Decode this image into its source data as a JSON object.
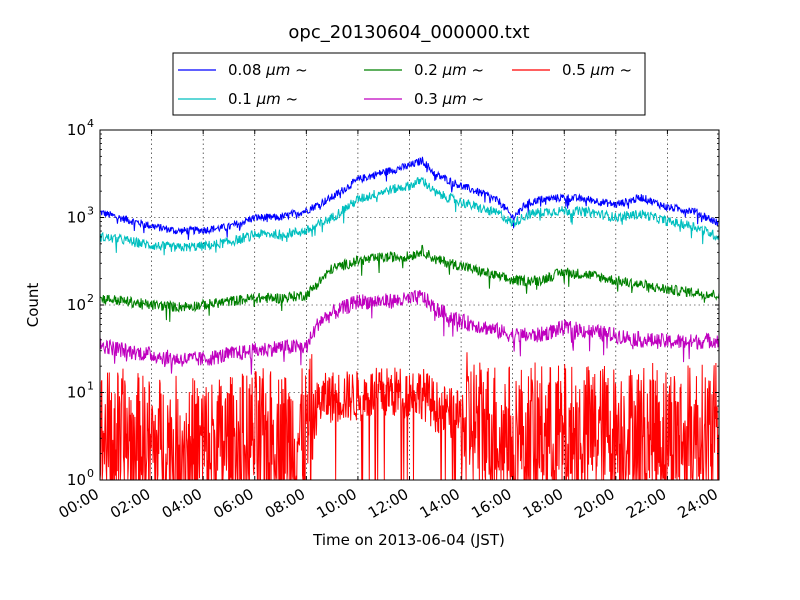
{
  "chart_data": {
    "type": "line",
    "title": "opc_20130604_000000.txt",
    "xlabel": "Time on 2013-06-04 (JST)",
    "ylabel": "Count",
    "x_tick_labels": [
      "00:00",
      "02:00",
      "04:00",
      "06:00",
      "08:00",
      "10:00",
      "12:00",
      "14:00",
      "16:00",
      "18:00",
      "20:00",
      "22:00",
      "24:00"
    ],
    "y_tick_labels": [
      {
        "base": "10",
        "exp": "0"
      },
      {
        "base": "10",
        "exp": "1"
      },
      {
        "base": "10",
        "exp": "2"
      },
      {
        "base": "10",
        "exp": "3"
      },
      {
        "base": "10",
        "exp": "4"
      }
    ],
    "xlim": [
      "2013-06-04 00:00",
      "2013-06-05 00:00"
    ],
    "ylim": [
      1,
      10000
    ],
    "yscale": "log",
    "grid": true,
    "legend_position": "top",
    "series": [
      {
        "name": "0.08 μm ~",
        "name_main": "0.08 ",
        "name_unit": "μm ~",
        "color": "#0000ff",
        "x": [
          "00:00",
          "01:00",
          "02:00",
          "03:00",
          "04:00",
          "05:00",
          "06:00",
          "07:00",
          "08:00",
          "09:00",
          "10:00",
          "11:00",
          "12:00",
          "12:30",
          "13:00",
          "14:00",
          "15:00",
          "15:30",
          "16:00",
          "16:30",
          "17:00",
          "18:00",
          "19:00",
          "20:00",
          "21:00",
          "22:00",
          "23:00",
          "24:00"
        ],
        "values": [
          1150,
          950,
          800,
          700,
          720,
          780,
          1000,
          1000,
          1200,
          1700,
          2700,
          3300,
          3900,
          4500,
          3100,
          2300,
          1800,
          1500,
          1000,
          1400,
          1600,
          1700,
          1600,
          1400,
          1700,
          1300,
          1200,
          850
        ]
      },
      {
        "name": "0.1 μm ~",
        "name_main": "0.1 ",
        "name_unit": "μm ~",
        "color": "#00bfbf",
        "x": [
          "00:00",
          "01:00",
          "02:00",
          "03:00",
          "04:00",
          "05:00",
          "06:00",
          "07:00",
          "08:00",
          "09:00",
          "10:00",
          "11:00",
          "12:00",
          "12:30",
          "13:00",
          "14:00",
          "15:00",
          "15:30",
          "16:00",
          "16:30",
          "17:00",
          "18:00",
          "19:00",
          "20:00",
          "21:00",
          "22:00",
          "23:00",
          "24:00"
        ],
        "values": [
          600,
          550,
          480,
          450,
          470,
          520,
          640,
          650,
          700,
          1000,
          1600,
          2000,
          2300,
          2700,
          1900,
          1500,
          1200,
          1100,
          850,
          1050,
          1150,
          1200,
          1150,
          1000,
          1100,
          900,
          800,
          600
        ]
      },
      {
        "name": "0.2 μm ~",
        "name_main": "0.2 ",
        "name_unit": "μm ~",
        "color": "#008000",
        "x": [
          "00:00",
          "01:00",
          "02:00",
          "03:00",
          "04:00",
          "05:00",
          "06:00",
          "07:00",
          "08:00",
          "09:00",
          "10:00",
          "11:00",
          "12:00",
          "12:30",
          "13:00",
          "14:00",
          "15:00",
          "16:00",
          "17:00",
          "18:00",
          "19:00",
          "20:00",
          "21:00",
          "22:00",
          "23:00",
          "24:00"
        ],
        "values": [
          120,
          110,
          100,
          95,
          100,
          110,
          120,
          120,
          130,
          260,
          320,
          350,
          360,
          420,
          330,
          280,
          230,
          190,
          190,
          240,
          220,
          190,
          170,
          150,
          140,
          130
        ]
      },
      {
        "name": "0.3 μm ~",
        "name_main": "0.3 ",
        "name_unit": "μm ~",
        "color": "#bf00bf",
        "x": [
          "00:00",
          "01:00",
          "02:00",
          "03:00",
          "04:00",
          "05:00",
          "06:00",
          "07:00",
          "08:00",
          "08:30",
          "09:00",
          "10:00",
          "11:00",
          "12:00",
          "12:30",
          "13:00",
          "14:00",
          "15:00",
          "16:00",
          "17:00",
          "18:00",
          "19:00",
          "20:00",
          "21:00",
          "22:00",
          "23:00",
          "24:00"
        ],
        "values": [
          35,
          30,
          27,
          24,
          24,
          27,
          30,
          33,
          33,
          65,
          80,
          110,
          110,
          115,
          125,
          90,
          65,
          55,
          45,
          45,
          55,
          50,
          45,
          40,
          38,
          38,
          40
        ]
      },
      {
        "name": "0.5 μm ~",
        "name_main": "0.5 ",
        "name_unit": "μm ~",
        "color": "#ff0000",
        "x": [
          "00:00",
          "01:00",
          "02:00",
          "03:00",
          "04:00",
          "05:00",
          "06:00",
          "07:00",
          "08:00",
          "08:30",
          "09:00",
          "10:00",
          "11:00",
          "12:00",
          "12:30",
          "13:00",
          "14:00",
          "15:00",
          "16:00",
          "17:00",
          "18:00",
          "19:00",
          "20:00",
          "21:00",
          "22:00",
          "23:00",
          "24:00"
        ],
        "values": [
          3,
          3,
          2.5,
          2.5,
          2.5,
          2.5,
          3,
          3,
          3,
          8,
          9,
          9,
          10,
          10,
          10,
          7,
          5,
          4,
          3.5,
          3.5,
          3.5,
          3.5,
          3.5,
          3.5,
          3.5,
          3.5,
          3.5
        ]
      }
    ]
  }
}
